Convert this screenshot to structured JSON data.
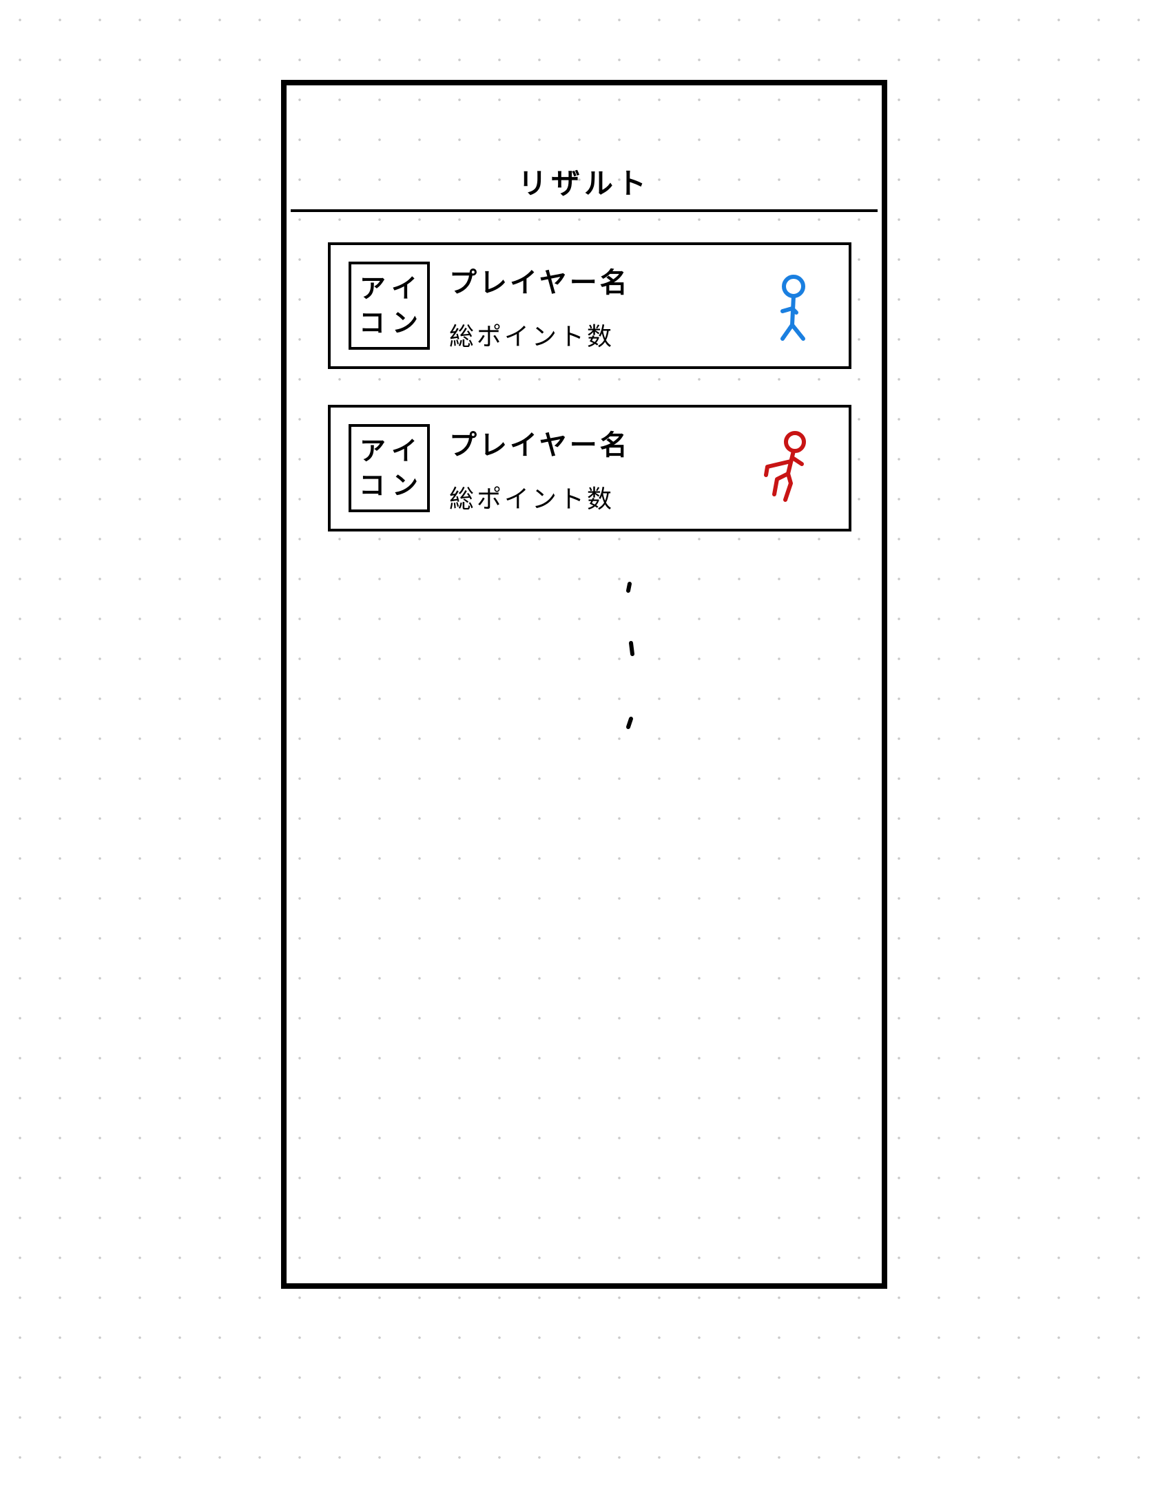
{
  "header": {
    "title": "リザルト"
  },
  "results": [
    {
      "icon_text": "アイコン",
      "player_name": "プレイヤー名",
      "points_label": "総ポイント数",
      "avatar_color": "#1a7fe0",
      "avatar_icon": "standing-figure-icon"
    },
    {
      "icon_text": "アイコン",
      "player_name": "プレイヤー名",
      "points_label": "総ポイント数",
      "avatar_color": "#c81414",
      "avatar_icon": "running-figure-icon"
    }
  ],
  "colors": {
    "frame": "#000000",
    "background": "#ffffff"
  }
}
